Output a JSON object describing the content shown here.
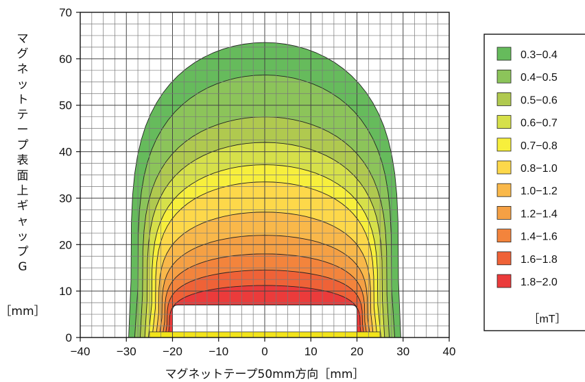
{
  "chart_data": {
    "type": "contour",
    "xlabel": "マグネットテープ50mm方向［mm］",
    "ylabel_lines": [
      "マ",
      "グ",
      "ネ",
      "ッ",
      "ト",
      "テ",
      "ー",
      "プ",
      "表",
      "面",
      "上",
      "ギ",
      "ャ",
      "ッ",
      "プ",
      "G"
    ],
    "ylabel_unit": "［mm］",
    "xlim": [
      -40,
      40
    ],
    "ylim": [
      0,
      70
    ],
    "xticks": [
      -40,
      -30,
      -20,
      -10,
      0,
      10,
      20,
      30,
      40
    ],
    "yticks": [
      0,
      10,
      20,
      30,
      40,
      50,
      60,
      70
    ],
    "grid": true,
    "grid_step_x": 2.5,
    "grid_step_y": 2.5,
    "tape": {
      "x": [
        -25,
        25
      ],
      "y": [
        0,
        1.2
      ],
      "color": "#f2e41a"
    },
    "legend_unit": "［mT］",
    "legend_position": "right",
    "levels": [
      {
        "label": "0.3−0.4",
        "color": "#66bb5c",
        "outer_top": 63.5,
        "half_width": 29.5,
        "flat_to": 29.0,
        "inner_x": 0
      },
      {
        "label": "0.4−0.5",
        "color": "#8cc45a",
        "outer_top": 56.5,
        "half_width": 28.2,
        "flat_to": 27.5,
        "inner_x": 0
      },
      {
        "label": "0.5−0.6",
        "color": "#b0c94f",
        "outer_top": 47.5,
        "half_width": 27.0,
        "flat_to": 26.5,
        "inner_x": 0
      },
      {
        "label": "0.6−0.7",
        "color": "#d6e04a",
        "outer_top": 42.0,
        "half_width": 26.0,
        "flat_to": 25.5,
        "inner_x": 0
      },
      {
        "label": "0.7−0.8",
        "color": "#f7ef3c",
        "outer_top": 37.2,
        "half_width": 25.2,
        "flat_to": 24.5,
        "inner_x": 0
      },
      {
        "label": "0.8−1.0",
        "color": "#fdd84a",
        "outer_top": 33.5,
        "half_width": 24.4,
        "flat_to": 23.7,
        "inner_x": 0
      },
      {
        "label": "1.0−1.2",
        "color": "#f9b84a",
        "outer_top": 27.0,
        "half_width": 23.6,
        "flat_to": 23.0,
        "inner_x": 0
      },
      {
        "label": "1.2−1.4",
        "color": "#f5a044",
        "outer_top": 22.0,
        "half_width": 22.9,
        "flat_to": 22.3,
        "inner_x": 0
      },
      {
        "label": "1.4−1.6",
        "color": "#f3843c",
        "outer_top": 18.0,
        "half_width": 22.2,
        "flat_to": 21.7,
        "inner_x": 0
      },
      {
        "label": "1.6−1.8",
        "color": "#ef6237",
        "outer_top": 14.5,
        "half_width": 21.6,
        "flat_to": 21.2,
        "inner_x": 0
      },
      {
        "label": "1.8−2.0",
        "color": "#eb3b3b",
        "outer_top": 11.2,
        "half_width": 21.0,
        "flat_to": 20.7,
        "inner_x": 0
      }
    ],
    "hole": {
      "x": [
        -20,
        20
      ],
      "top": 7.0
    }
  }
}
